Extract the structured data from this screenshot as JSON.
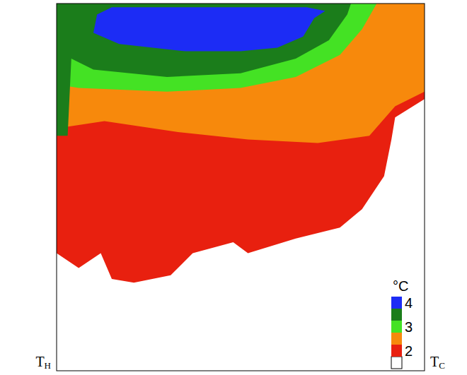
{
  "chart_data": {
    "type": "contour",
    "xlim": [
      0,
      1
    ],
    "ylim": [
      0,
      1
    ],
    "tick_labels": false,
    "wall_labels": [
      {
        "main": "T",
        "sub": "H"
      },
      {
        "main": "T",
        "sub": "C"
      }
    ],
    "regions": [
      {
        "level": 2,
        "points": [
          [
            0,
            1
          ],
          [
            0,
            0.32
          ],
          [
            0.06,
            0.28
          ],
          [
            0.12,
            0.32
          ],
          [
            0.15,
            0.25
          ],
          [
            0.21,
            0.24
          ],
          [
            0.31,
            0.26
          ],
          [
            0.37,
            0.32
          ],
          [
            0.48,
            0.35
          ],
          [
            0.52,
            0.32
          ],
          [
            0.65,
            0.36
          ],
          [
            0.77,
            0.39
          ],
          [
            0.83,
            0.44
          ],
          [
            0.89,
            0.53
          ],
          [
            0.91,
            0.63
          ],
          [
            0.92,
            0.69
          ],
          [
            1,
            0.74
          ],
          [
            1,
            1
          ]
        ]
      },
      {
        "level": 2.5,
        "points": [
          [
            0,
            1
          ],
          [
            0,
            0.66
          ],
          [
            0.13,
            0.68
          ],
          [
            0.33,
            0.65
          ],
          [
            0.52,
            0.63
          ],
          [
            0.71,
            0.62
          ],
          [
            0.85,
            0.64
          ],
          [
            0.92,
            0.72
          ],
          [
            1,
            0.76
          ],
          [
            1,
            1
          ]
        ]
      },
      {
        "level": 3,
        "points": [
          [
            0,
            1
          ],
          [
            0,
            0.78
          ],
          [
            0.06,
            0.77
          ],
          [
            0.3,
            0.76
          ],
          [
            0.5,
            0.77
          ],
          [
            0.65,
            0.8
          ],
          [
            0.77,
            0.86
          ],
          [
            0.83,
            0.93
          ],
          [
            0.87,
            1
          ]
        ]
      },
      {
        "level": 3.5,
        "points": [
          [
            0,
            1
          ],
          [
            0,
            0.64
          ],
          [
            0.03,
            0.64
          ],
          [
            0.04,
            0.85
          ],
          [
            0.1,
            0.82
          ],
          [
            0.3,
            0.8
          ],
          [
            0.5,
            0.81
          ],
          [
            0.65,
            0.85
          ],
          [
            0.74,
            0.9
          ],
          [
            0.79,
            0.97
          ],
          [
            0.8,
            1
          ]
        ]
      },
      {
        "level": 4,
        "points": [
          [
            0.11,
            0.97
          ],
          [
            0.1,
            0.92
          ],
          [
            0.17,
            0.89
          ],
          [
            0.35,
            0.87
          ],
          [
            0.5,
            0.87
          ],
          [
            0.6,
            0.88
          ],
          [
            0.67,
            0.91
          ],
          [
            0.7,
            0.96
          ],
          [
            0.73,
            0.98
          ],
          [
            0.68,
            0.99
          ],
          [
            0.4,
            0.99
          ],
          [
            0.15,
            0.99
          ]
        ]
      }
    ],
    "colorbar": {
      "label": "°C",
      "range": [
        1.25,
        4.25
      ],
      "ticks": [
        2,
        3,
        4
      ],
      "levels": [
        1.25,
        1.75,
        2.25,
        2.75,
        3.25,
        3.75,
        4.25
      ],
      "colors": [
        "#ffffff",
        "#e8200f",
        "#f7890c",
        "#44e224",
        "#1b7d1b",
        "#1c2cf5"
      ]
    }
  }
}
